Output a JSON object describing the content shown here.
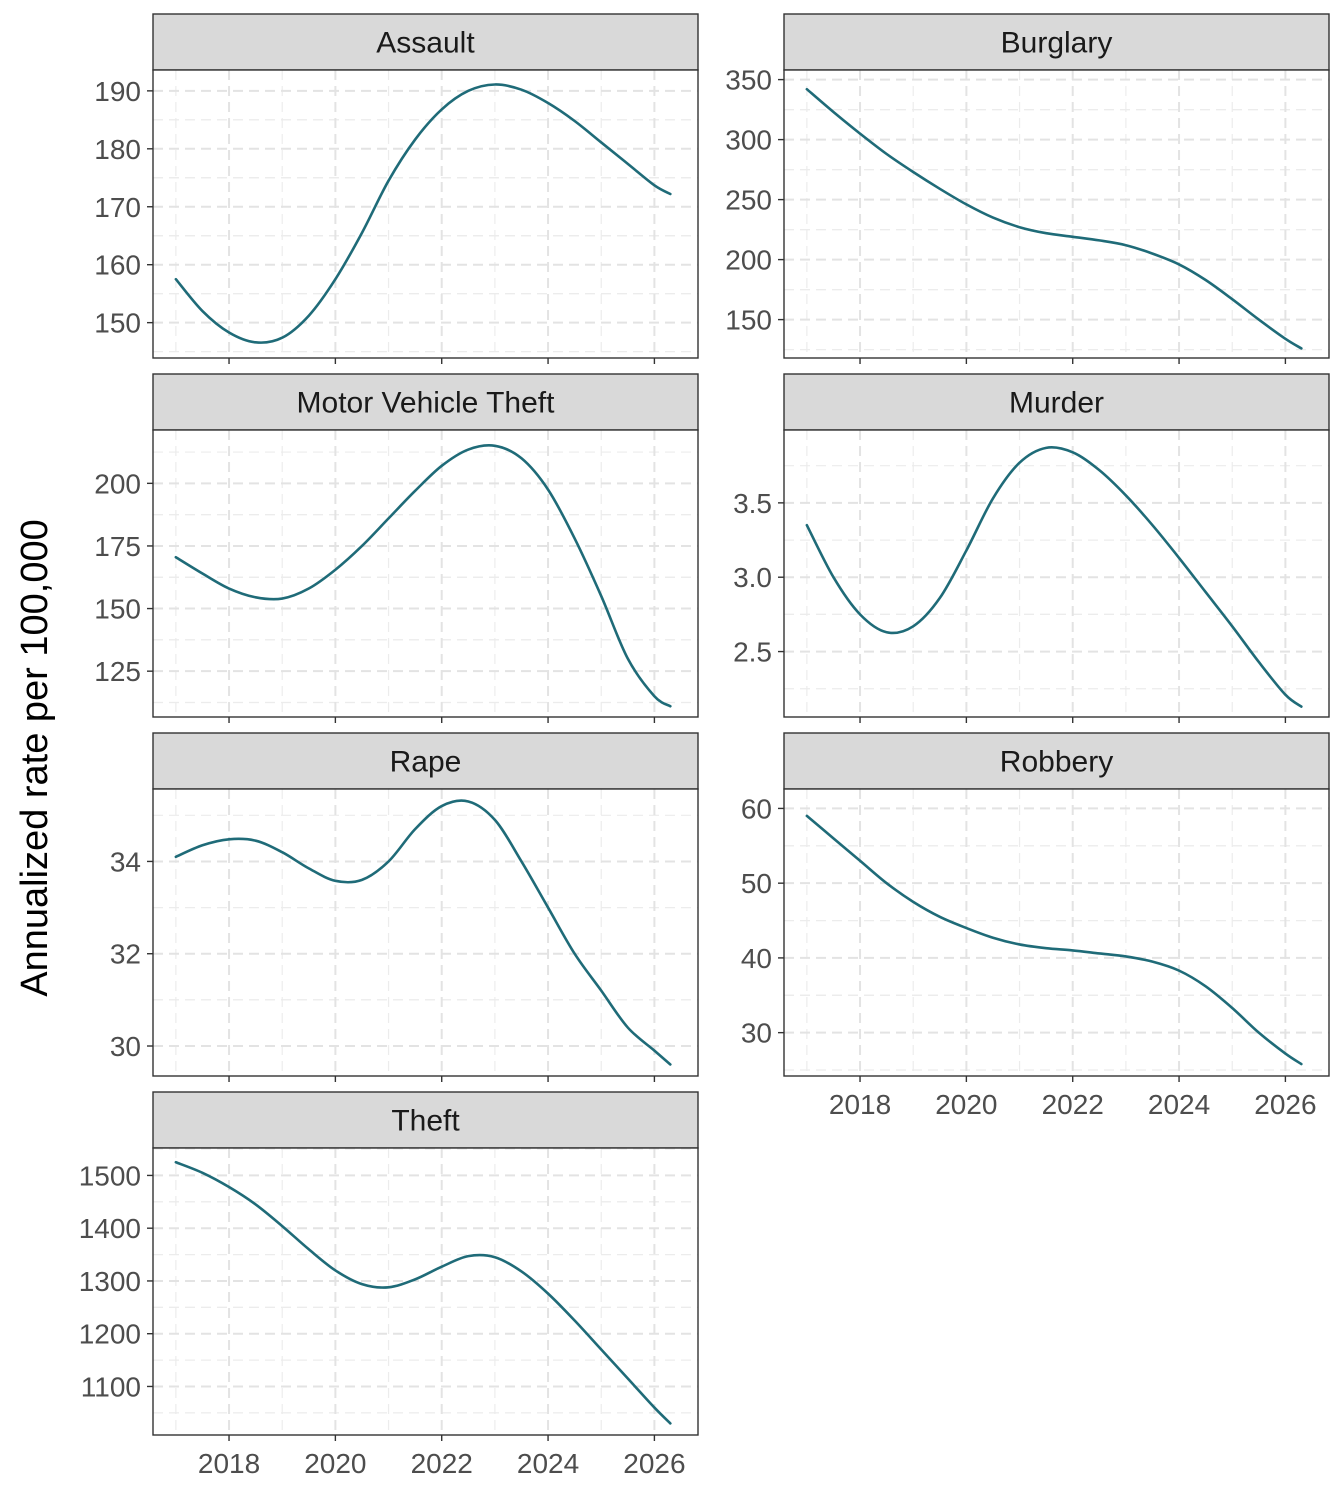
{
  "chart_data": {
    "type": "line",
    "facet": "wrap",
    "ylabel": "Annualized rate per 100,000",
    "xlabel": "",
    "grid": true,
    "grid_style": "dashed",
    "line_color": "#1f6b78",
    "strip_color": "#d9d9d9",
    "x_ticks": [
      2018,
      2020,
      2022,
      2024,
      2026
    ],
    "xlim": [
      2016.57,
      2026.82
    ],
    "panels": [
      {
        "title": "Assault",
        "ylim": [
          143.9,
          193.6
        ],
        "y_ticks": [
          150,
          160,
          170,
          180,
          190
        ],
        "x": [
          2017.0,
          2017.5,
          2018.0,
          2018.5,
          2019.0,
          2019.5,
          2020.0,
          2020.5,
          2021.0,
          2021.5,
          2022.0,
          2022.5,
          2023.0,
          2023.5,
          2024.0,
          2024.5,
          2025.0,
          2025.5,
          2026.0,
          2026.3
        ],
        "y": [
          157.5,
          152.0,
          148.3,
          146.6,
          147.4,
          151.2,
          157.5,
          165.5,
          174.5,
          181.6,
          186.8,
          190.0,
          191.1,
          190.2,
          187.9,
          184.8,
          181.1,
          177.4,
          173.7,
          172.2
        ]
      },
      {
        "title": "Burglary",
        "ylim": [
          118,
          358
        ],
        "y_ticks": [
          150,
          200,
          250,
          300,
          350
        ],
        "x": [
          2017.0,
          2017.5,
          2018.0,
          2018.5,
          2019.0,
          2019.5,
          2020.0,
          2020.5,
          2021.0,
          2021.5,
          2022.0,
          2022.5,
          2023.0,
          2023.5,
          2024.0,
          2024.5,
          2025.0,
          2025.5,
          2026.0,
          2026.3
        ],
        "y": [
          342,
          323,
          305,
          288,
          273,
          259,
          246,
          235,
          227,
          222,
          219,
          216,
          212,
          205,
          196,
          183,
          167,
          150,
          134,
          126
        ]
      },
      {
        "title": "Motor Vehicle Theft",
        "ylim": [
          106.7,
          221.3
        ],
        "y_ticks": [
          125,
          150,
          175,
          200
        ],
        "x": [
          2017.0,
          2017.5,
          2018.0,
          2018.5,
          2019.0,
          2019.5,
          2020.0,
          2020.5,
          2021.0,
          2021.5,
          2022.0,
          2022.5,
          2023.0,
          2023.5,
          2024.0,
          2024.5,
          2025.0,
          2025.5,
          2026.0,
          2026.3
        ],
        "y": [
          170.5,
          164.0,
          158.0,
          154.5,
          154.0,
          158.0,
          165.5,
          175.0,
          186.0,
          197.0,
          207.0,
          213.5,
          215.0,
          210.0,
          197.5,
          178.0,
          155.0,
          130.0,
          115.0,
          111.0
        ]
      },
      {
        "title": "Murder",
        "ylim": [
          2.06,
          3.99
        ],
        "y_ticks": [
          2.5,
          3.0,
          3.5
        ],
        "y_tick_labels": [
          "2.5",
          "3.0",
          "3.5"
        ],
        "x": [
          2017.0,
          2017.5,
          2018.0,
          2018.5,
          2019.0,
          2019.5,
          2020.0,
          2020.5,
          2021.0,
          2021.5,
          2022.0,
          2022.5,
          2023.0,
          2023.5,
          2024.0,
          2024.5,
          2025.0,
          2025.5,
          2026.0,
          2026.3
        ],
        "y": [
          3.35,
          3.0,
          2.75,
          2.63,
          2.67,
          2.86,
          3.18,
          3.53,
          3.77,
          3.87,
          3.84,
          3.72,
          3.55,
          3.35,
          3.13,
          2.9,
          2.67,
          2.43,
          2.21,
          2.13
        ]
      },
      {
        "title": "Rape",
        "ylim": [
          29.35,
          35.57
        ],
        "y_ticks": [
          30,
          32,
          34
        ],
        "x": [
          2017.0,
          2017.5,
          2018.0,
          2018.5,
          2019.0,
          2019.5,
          2020.0,
          2020.5,
          2021.0,
          2021.5,
          2022.0,
          2022.5,
          2023.0,
          2023.5,
          2024.0,
          2024.5,
          2025.0,
          2025.5,
          2026.0,
          2026.3
        ],
        "y": [
          34.1,
          34.35,
          34.48,
          34.45,
          34.2,
          33.85,
          33.58,
          33.6,
          34.0,
          34.7,
          35.2,
          35.3,
          34.9,
          34.0,
          33.0,
          32.0,
          31.2,
          30.4,
          29.9,
          29.6
        ]
      },
      {
        "title": "Robbery",
        "ylim": [
          24.2,
          62.6
        ],
        "y_ticks": [
          30,
          40,
          50,
          60
        ],
        "x": [
          2017.0,
          2017.5,
          2018.0,
          2018.5,
          2019.0,
          2019.5,
          2020.0,
          2020.5,
          2021.0,
          2021.5,
          2022.0,
          2022.5,
          2023.0,
          2023.5,
          2024.0,
          2024.5,
          2025.0,
          2025.5,
          2026.0,
          2026.3
        ],
        "y": [
          59.0,
          56.0,
          53.0,
          50.0,
          47.5,
          45.5,
          44.0,
          42.7,
          41.8,
          41.3,
          41.0,
          40.6,
          40.2,
          39.5,
          38.3,
          36.2,
          33.3,
          30.0,
          27.2,
          25.8
        ]
      },
      {
        "title": "Theft",
        "ylim": [
          1008,
          1552
        ],
        "y_ticks": [
          1100,
          1200,
          1300,
          1400,
          1500
        ],
        "x": [
          2017.0,
          2017.5,
          2018.0,
          2018.5,
          2019.0,
          2019.5,
          2020.0,
          2020.5,
          2021.0,
          2021.5,
          2022.0,
          2022.5,
          2023.0,
          2023.5,
          2024.0,
          2024.5,
          2025.0,
          2025.5,
          2026.0,
          2026.3
        ],
        "y": [
          1525,
          1505,
          1478,
          1445,
          1404,
          1360,
          1320,
          1294,
          1288,
          1303,
          1327,
          1347,
          1345,
          1318,
          1276,
          1225,
          1170,
          1115,
          1060,
          1030
        ]
      }
    ]
  }
}
